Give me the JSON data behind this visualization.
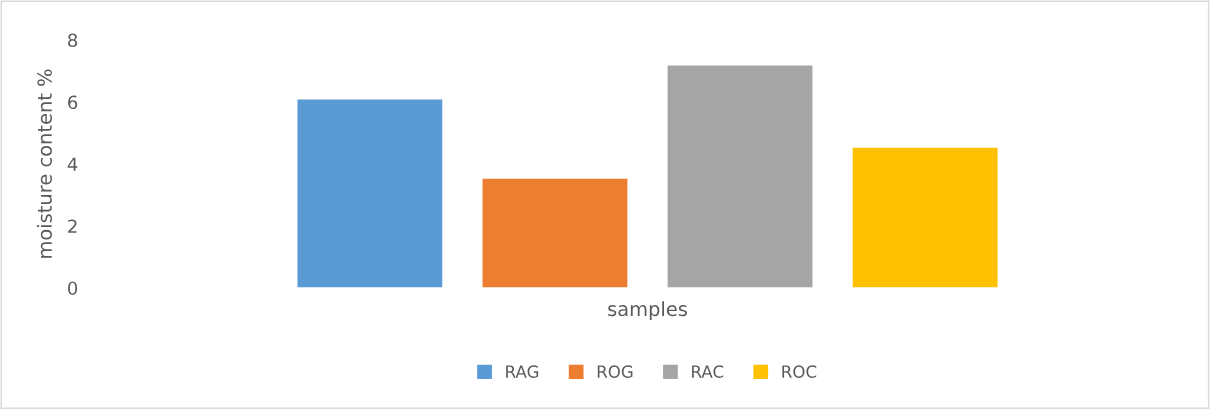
{
  "chart_data": {
    "type": "bar",
    "xlabel": "samples",
    "ylabel": "moisture content %",
    "categories": [
      null
    ],
    "series": [
      {
        "name": "RAG",
        "color": "#5b9bd5",
        "values": [
          6.1
        ]
      },
      {
        "name": "ROG",
        "color": "#ed7d31",
        "values": [
          3.55
        ]
      },
      {
        "name": "RAC",
        "color": "#a5a5a5",
        "values": [
          7.2
        ]
      },
      {
        "name": "ROC",
        "color": "#ffc000",
        "values": [
          4.55
        ]
      }
    ],
    "ylim": [
      0,
      8
    ],
    "yticks": [
      0,
      2,
      4,
      6,
      8
    ],
    "grid": false,
    "legend": "bottom"
  }
}
